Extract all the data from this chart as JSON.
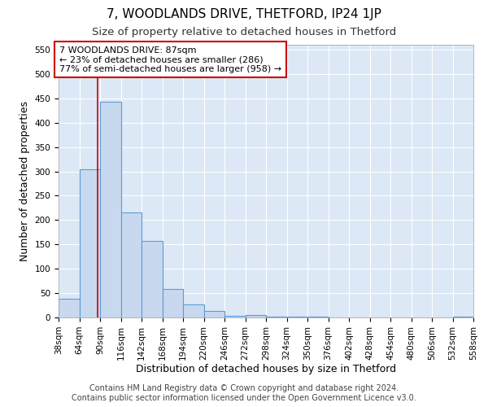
{
  "title": "7, WOODLANDS DRIVE, THETFORD, IP24 1JP",
  "subtitle": "Size of property relative to detached houses in Thetford",
  "xlabel": "Distribution of detached houses by size in Thetford",
  "ylabel": "Number of detached properties",
  "bin_edges": [
    38,
    64,
    90,
    116,
    142,
    168,
    194,
    220,
    246,
    272,
    298,
    324,
    350,
    376,
    402,
    428,
    454,
    480,
    506,
    532,
    558
  ],
  "bar_heights": [
    38,
    305,
    443,
    215,
    157,
    58,
    27,
    13,
    3,
    5,
    2,
    2,
    2,
    0,
    0,
    0,
    0,
    0,
    0,
    2
  ],
  "bar_face_color": "#c8d9ef",
  "bar_edge_color": "#5b9bd5",
  "property_size": 87,
  "vline_color": "#cc0000",
  "annotation_text": "7 WOODLANDS DRIVE: 87sqm\n← 23% of detached houses are smaller (286)\n77% of semi-detached houses are larger (958) →",
  "annotation_box_color": "#ffffff",
  "annotation_box_edge": "#cc0000",
  "ylim": [
    0,
    560
  ],
  "yticks": [
    0,
    50,
    100,
    150,
    200,
    250,
    300,
    350,
    400,
    450,
    500,
    550
  ],
  "footer_line1": "Contains HM Land Registry data © Crown copyright and database right 2024.",
  "footer_line2": "Contains public sector information licensed under the Open Government Licence v3.0.",
  "bg_color": "#ffffff",
  "plot_bg_color": "#dce8f5",
  "grid_color": "#ffffff",
  "title_fontsize": 11,
  "subtitle_fontsize": 9.5,
  "axis_label_fontsize": 9,
  "tick_fontsize": 7.5,
  "footer_fontsize": 7,
  "ann_fontsize": 8
}
